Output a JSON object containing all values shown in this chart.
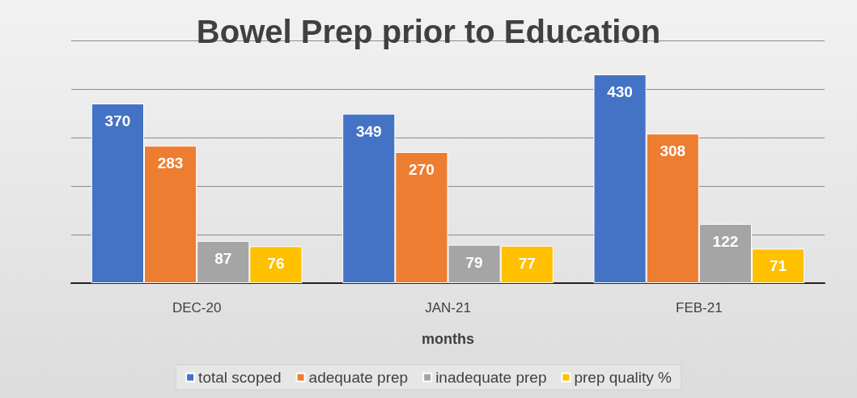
{
  "chart_data": {
    "type": "bar",
    "title": "Bowel Prep prior to Education",
    "xlabel": "months",
    "categories": [
      "DEC-20",
      "JAN-21",
      "FEB-21"
    ],
    "series": [
      {
        "name": "total scoped",
        "color": "#4472c4",
        "values": [
          370,
          349,
          430
        ]
      },
      {
        "name": "adequate prep",
        "color": "#ed7d31",
        "values": [
          283,
          270,
          308
        ]
      },
      {
        "name": "inadequate prep",
        "color": "#a5a5a5",
        "values": [
          87,
          79,
          122
        ]
      },
      {
        "name": "prep quality %",
        "color": "#ffc000",
        "values": [
          76,
          77,
          71
        ]
      }
    ],
    "ylim": [
      0,
      500
    ],
    "yticks": [
      {
        "value": 0,
        "label": null
      },
      {
        "value": 100,
        "label": null
      },
      {
        "value": 200,
        "label": null
      },
      {
        "value": 300,
        "label": null
      },
      {
        "value": 400,
        "label": null
      },
      {
        "value": 500,
        "label": null
      }
    ],
    "tick_labels": "x",
    "grid": "y",
    "legend": "bottom",
    "data_labels": true
  }
}
